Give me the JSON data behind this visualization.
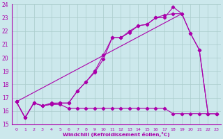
{
  "xlabel": "Windchill (Refroidissement éolien,°C)",
  "xlim": [
    -0.5,
    23.5
  ],
  "ylim": [
    15,
    24
  ],
  "yticks": [
    15,
    16,
    17,
    18,
    19,
    20,
    21,
    22,
    23,
    24
  ],
  "xticks": [
    0,
    1,
    2,
    3,
    4,
    5,
    6,
    7,
    8,
    9,
    10,
    11,
    12,
    13,
    14,
    15,
    16,
    17,
    18,
    19,
    20,
    21,
    22,
    23
  ],
  "bg_color": "#cce8ec",
  "grid_color": "#aacccc",
  "line_color": "#aa00aa",
  "curve1_x": [
    0,
    1,
    2,
    3,
    4,
    5,
    6,
    7,
    8,
    9,
    10,
    11,
    12,
    13,
    14,
    15,
    16,
    17,
    18,
    19,
    20,
    21,
    22,
    23
  ],
  "curve1_y": [
    16.7,
    15.5,
    16.6,
    16.4,
    16.6,
    16.6,
    16.6,
    17.5,
    18.2,
    18.9,
    19.9,
    21.5,
    21.5,
    21.9,
    22.4,
    22.5,
    23.0,
    23.0,
    23.8,
    23.3,
    21.8,
    20.6,
    15.8,
    15.8
  ],
  "curve2_x": [
    0,
    1,
    2,
    3,
    4,
    5,
    6,
    7,
    8,
    9,
    10,
    11,
    12,
    13,
    14,
    15,
    16,
    17,
    18,
    19,
    20,
    21,
    22,
    23
  ],
  "curve2_y": [
    16.7,
    15.5,
    16.6,
    16.4,
    16.5,
    16.6,
    16.6,
    17.5,
    18.2,
    19.0,
    20.2,
    21.5,
    21.5,
    22.0,
    22.4,
    22.5,
    23.0,
    23.2,
    23.3,
    23.3,
    21.8,
    20.6,
    15.8,
    15.8
  ],
  "curve3_x": [
    0,
    1,
    2,
    3,
    4,
    5,
    6,
    7,
    8,
    9,
    10,
    11,
    12,
    13,
    14,
    15,
    16,
    17,
    18,
    19,
    20,
    21,
    22,
    23
  ],
  "curve3_y": [
    16.7,
    15.5,
    16.6,
    16.4,
    16.5,
    16.5,
    16.2,
    16.2,
    16.2,
    16.2,
    16.2,
    16.2,
    16.2,
    16.2,
    16.2,
    16.2,
    16.2,
    16.2,
    15.8,
    15.8,
    15.8,
    15.8,
    15.8,
    15.8
  ],
  "curve4_x": [
    0,
    19
  ],
  "curve4_y": [
    16.7,
    23.3
  ]
}
